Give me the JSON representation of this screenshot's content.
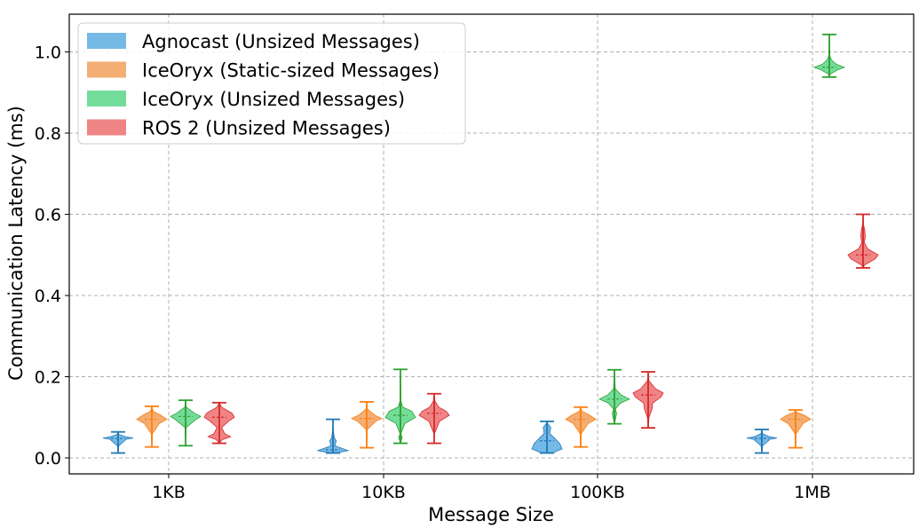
{
  "chart_data": {
    "type": "violin",
    "title": "",
    "xlabel": "Message Size",
    "ylabel": "Communication Latency (ms)",
    "categories": [
      "1KB",
      "10KB",
      "100KB",
      "1MB"
    ],
    "ylim": [
      -0.04,
      1.09
    ],
    "yticks": [
      0.0,
      0.2,
      0.4,
      0.6,
      0.8,
      1.0
    ],
    "ytick_labels": [
      "0.0",
      "0.2",
      "0.4",
      "0.6",
      "0.8",
      "1.0"
    ],
    "grid": true,
    "legend_position": "upper-left",
    "series": [
      {
        "name": "Agnocast (Unsized Messages)",
        "color": "#1f77b4",
        "fill": "#5dade2",
        "violins": [
          {
            "min": 0.012,
            "max": 0.064,
            "median": 0.048,
            "shape": [
              [
                0.03,
                0.05
              ],
              [
                0.046,
                0.55
              ],
              [
                0.049,
                1.0
              ],
              [
                0.052,
                0.5
              ],
              [
                0.058,
                0.05
              ]
            ]
          },
          {
            "min": 0.012,
            "max": 0.095,
            "median": 0.02,
            "shape": [
              [
                0.013,
                0.3
              ],
              [
                0.018,
                1.0
              ],
              [
                0.024,
                0.55
              ],
              [
                0.03,
                0.12
              ],
              [
                0.042,
                0.22
              ],
              [
                0.05,
                0.08
              ],
              [
                0.07,
                0.02
              ]
            ]
          },
          {
            "min": 0.012,
            "max": 0.09,
            "median": 0.042,
            "shape": [
              [
                0.013,
                0.4
              ],
              [
                0.022,
                1.0
              ],
              [
                0.035,
                0.85
              ],
              [
                0.045,
                0.6
              ],
              [
                0.06,
                0.18
              ],
              [
                0.075,
                0.25
              ],
              [
                0.085,
                0.04
              ]
            ]
          },
          {
            "min": 0.012,
            "max": 0.07,
            "median": 0.048,
            "shape": [
              [
                0.03,
                0.05
              ],
              [
                0.046,
                0.55
              ],
              [
                0.049,
                1.0
              ],
              [
                0.052,
                0.5
              ],
              [
                0.06,
                0.05
              ]
            ]
          }
        ]
      },
      {
        "name": "IceOryx (Static-sized Messages)",
        "color": "#ff7f0e",
        "fill": "#f0a05a",
        "violins": [
          {
            "min": 0.027,
            "max": 0.127,
            "median": 0.095,
            "shape": [
              [
                0.06,
                0.04
              ],
              [
                0.085,
                0.5
              ],
              [
                0.095,
                1.0
              ],
              [
                0.105,
                0.6
              ],
              [
                0.115,
                0.08
              ]
            ]
          },
          {
            "min": 0.025,
            "max": 0.138,
            "median": 0.097,
            "shape": [
              [
                0.07,
                0.04
              ],
              [
                0.09,
                0.6
              ],
              [
                0.097,
                1.0
              ],
              [
                0.105,
                0.55
              ],
              [
                0.12,
                0.05
              ]
            ]
          },
          {
            "min": 0.027,
            "max": 0.125,
            "median": 0.095,
            "shape": [
              [
                0.06,
                0.04
              ],
              [
                0.085,
                0.5
              ],
              [
                0.095,
                1.0
              ],
              [
                0.105,
                0.6
              ],
              [
                0.115,
                0.08
              ]
            ]
          },
          {
            "min": 0.025,
            "max": 0.118,
            "median": 0.095,
            "shape": [
              [
                0.06,
                0.04
              ],
              [
                0.085,
                0.5
              ],
              [
                0.095,
                1.0
              ],
              [
                0.105,
                0.6
              ],
              [
                0.112,
                0.08
              ]
            ]
          }
        ]
      },
      {
        "name": "IceOryx (Unsized Messages)",
        "color": "#2ca02c",
        "fill": "#5cd68a",
        "violins": [
          {
            "min": 0.03,
            "max": 0.142,
            "median": 0.102,
            "shape": [
              [
                0.075,
                0.04
              ],
              [
                0.095,
                0.7
              ],
              [
                0.102,
                1.0
              ],
              [
                0.11,
                0.6
              ],
              [
                0.125,
                0.05
              ]
            ]
          },
          {
            "min": 0.036,
            "max": 0.218,
            "median": 0.105,
            "shape": [
              [
                0.05,
                0.12
              ],
              [
                0.06,
                0.03
              ],
              [
                0.085,
                0.3
              ],
              [
                0.1,
                1.0
              ],
              [
                0.115,
                0.75
              ],
              [
                0.125,
                0.15
              ],
              [
                0.14,
                0.03
              ]
            ]
          },
          {
            "min": 0.084,
            "max": 0.217,
            "median": 0.145,
            "shape": [
              [
                0.11,
                0.15
              ],
              [
                0.12,
                0.05
              ],
              [
                0.135,
                0.4
              ],
              [
                0.145,
                1.0
              ],
              [
                0.155,
                0.45
              ],
              [
                0.17,
                0.05
              ]
            ]
          },
          {
            "min": 0.938,
            "max": 1.043,
            "median": 0.962,
            "shape": [
              [
                0.945,
                0.05
              ],
              [
                0.955,
                0.5
              ],
              [
                0.962,
                1.0
              ],
              [
                0.97,
                0.45
              ],
              [
                0.98,
                0.15
              ],
              [
                0.99,
                0.04
              ]
            ]
          }
        ]
      },
      {
        "name": "ROS 2 (Unsized Messages)",
        "color": "#d62728",
        "fill": "#ec6e6e",
        "violins": [
          {
            "min": 0.036,
            "max": 0.136,
            "median": 0.1,
            "shape": [
              [
                0.045,
                0.2
              ],
              [
                0.052,
                0.75
              ],
              [
                0.06,
                0.35
              ],
              [
                0.075,
                0.15
              ],
              [
                0.09,
                0.6
              ],
              [
                0.1,
                1.0
              ],
              [
                0.11,
                0.85
              ],
              [
                0.125,
                0.15
              ]
            ]
          },
          {
            "min": 0.036,
            "max": 0.158,
            "median": 0.11,
            "shape": [
              [
                0.06,
                0.02
              ],
              [
                0.09,
                0.35
              ],
              [
                0.105,
                1.0
              ],
              [
                0.115,
                0.8
              ],
              [
                0.125,
                0.3
              ],
              [
                0.14,
                0.05
              ]
            ]
          },
          {
            "min": 0.074,
            "max": 0.212,
            "median": 0.155,
            "shape": [
              [
                0.1,
                0.05
              ],
              [
                0.12,
                0.25
              ],
              [
                0.135,
                0.3
              ],
              [
                0.15,
                0.85
              ],
              [
                0.16,
                1.0
              ],
              [
                0.17,
                0.5
              ],
              [
                0.19,
                0.05
              ]
            ]
          },
          {
            "min": 0.468,
            "max": 0.6,
            "median": 0.5,
            "shape": [
              [
                0.475,
                0.1
              ],
              [
                0.49,
                0.8
              ],
              [
                0.5,
                1.0
              ],
              [
                0.515,
                0.3
              ],
              [
                0.53,
                0.08
              ],
              [
                0.545,
                0.15
              ],
              [
                0.56,
                0.12
              ],
              [
                0.575,
                0.03
              ]
            ]
          }
        ]
      }
    ]
  }
}
